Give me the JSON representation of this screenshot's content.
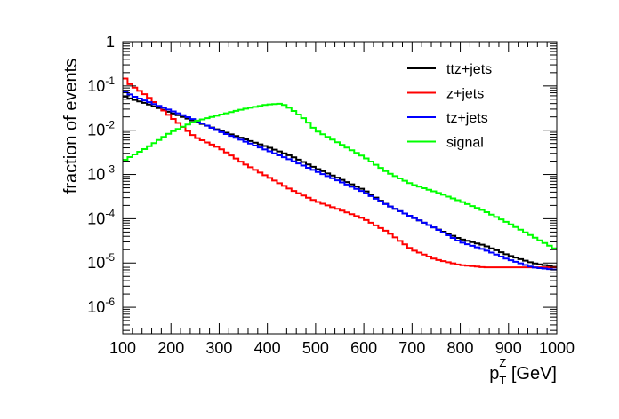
{
  "chart_data": {
    "type": "line",
    "style": "step-histogram",
    "ylabel": "fraction of events",
    "xlabel": "p_T^Z [GeV]",
    "xlabel_main": "p",
    "xlabel_sub": "T",
    "xlabel_sup": "Z",
    "xlabel_unit": " [GeV]",
    "xlim": [
      100,
      1000
    ],
    "ylim_log10": [
      -6.6,
      0
    ],
    "yscale": "log",
    "x_ticks": [
      100,
      200,
      300,
      400,
      500,
      600,
      700,
      800,
      900,
      1000
    ],
    "y_ticks": [
      {
        "base": "1",
        "exp": ""
      },
      {
        "base": "10",
        "exp": "-1"
      },
      {
        "base": "10",
        "exp": "-2"
      },
      {
        "base": "10",
        "exp": "-3"
      },
      {
        "base": "10",
        "exp": "-4"
      },
      {
        "base": "10",
        "exp": "-5"
      },
      {
        "base": "10",
        "exp": "-6"
      }
    ],
    "legend_position": "top-right",
    "series": [
      {
        "name": "ttz+jets",
        "color": "#000000",
        "x": [
          100,
          120,
          150,
          200,
          250,
          300,
          350,
          400,
          450,
          500,
          550,
          600,
          650,
          700,
          750,
          800,
          850,
          900,
          950,
          1000
        ],
        "y": [
          0.06,
          0.05,
          0.04,
          0.025,
          0.016,
          0.01,
          0.0065,
          0.0042,
          0.0026,
          0.0014,
          0.0008,
          0.00045,
          0.0002,
          0.00011,
          6e-05,
          3.5e-05,
          2.5e-05,
          1.5e-05,
          1e-05,
          8e-06
        ]
      },
      {
        "name": "z+jets",
        "color": "#ff0000",
        "x": [
          100,
          110,
          120,
          150,
          200,
          250,
          300,
          350,
          400,
          450,
          500,
          550,
          600,
          650,
          700,
          750,
          800,
          850,
          900,
          950,
          1000
        ],
        "y": [
          0.18,
          0.12,
          0.1,
          0.06,
          0.02,
          0.007,
          0.004,
          0.0018,
          0.0009,
          0.00045,
          0.00025,
          0.00016,
          0.0001,
          5e-05,
          2e-05,
          1.2e-05,
          9e-06,
          8e-06,
          8e-06,
          8e-06,
          8e-06
        ]
      },
      {
        "name": "tz+jets",
        "color": "#0000ff",
        "x": [
          100,
          120,
          150,
          200,
          250,
          300,
          350,
          400,
          450,
          500,
          550,
          600,
          650,
          700,
          750,
          800,
          850,
          900,
          950,
          1000
        ],
        "y": [
          0.08,
          0.06,
          0.045,
          0.028,
          0.017,
          0.0095,
          0.0058,
          0.0035,
          0.0021,
          0.0012,
          0.0007,
          0.0004,
          0.0002,
          0.00011,
          6e-05,
          3e-05,
          2e-05,
          1.2e-05,
          8e-06,
          7e-06
        ]
      },
      {
        "name": "signal",
        "color": "#00ff00",
        "x": [
          100,
          150,
          200,
          250,
          300,
          350,
          400,
          430,
          450,
          480,
          500,
          550,
          600,
          650,
          700,
          750,
          800,
          850,
          900,
          950,
          1000
        ],
        "y": [
          0.002,
          0.004,
          0.009,
          0.016,
          0.022,
          0.03,
          0.038,
          0.04,
          0.03,
          0.017,
          0.01,
          0.005,
          0.0025,
          0.0011,
          0.0006,
          0.0004,
          0.00025,
          0.00015,
          8e-05,
          4e-05,
          2e-05
        ]
      }
    ]
  }
}
